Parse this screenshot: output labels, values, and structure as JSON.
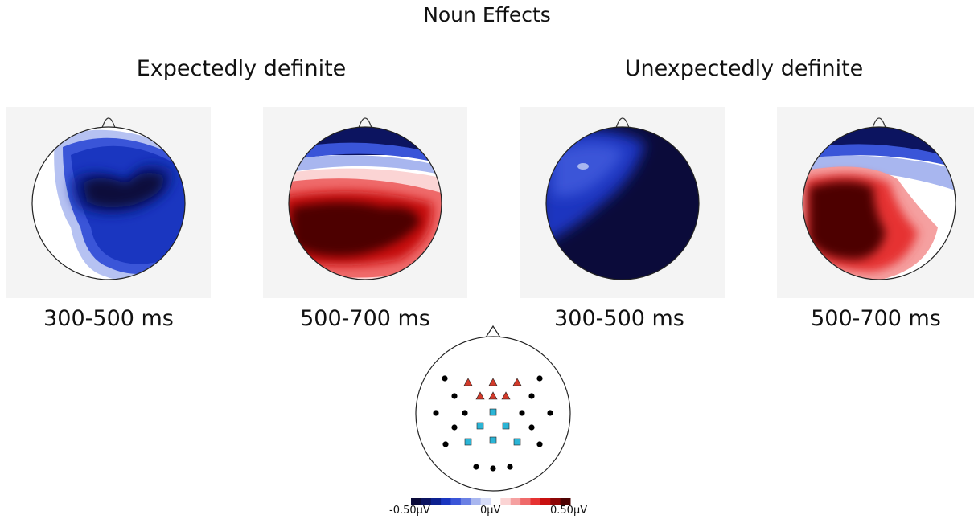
{
  "figure_title": "Noun Effects",
  "conditions": [
    {
      "label": "Expectedly definite",
      "windows": [
        "300-500 ms",
        "500-700 ms"
      ]
    },
    {
      "label": "Unexpectedly definite",
      "windows": [
        "300-500 ms",
        "500-700 ms"
      ]
    }
  ],
  "colorbar": {
    "min_label": "-0.50µV",
    "mid_label": "0µV",
    "max_label": "0.50µV",
    "colors": [
      "#0b0b3a",
      "#0c1460",
      "#0d2190",
      "#1a36c0",
      "#3a55d8",
      "#6a80e4",
      "#a8b6ef",
      "#d6dcf7",
      "#ffffff",
      "#fbd4d4",
      "#f5a0a0",
      "#ef6a6a",
      "#e63232",
      "#c81010",
      "#8c0606",
      "#4d0303"
    ]
  },
  "electrode_layout": {
    "anterior_marker": "triangle",
    "posterior_marker": "square",
    "other_marker": "circle",
    "colors": {
      "triangle": "#d23a2a",
      "square": "#2bb5d6",
      "circle": "#000000"
    }
  }
}
